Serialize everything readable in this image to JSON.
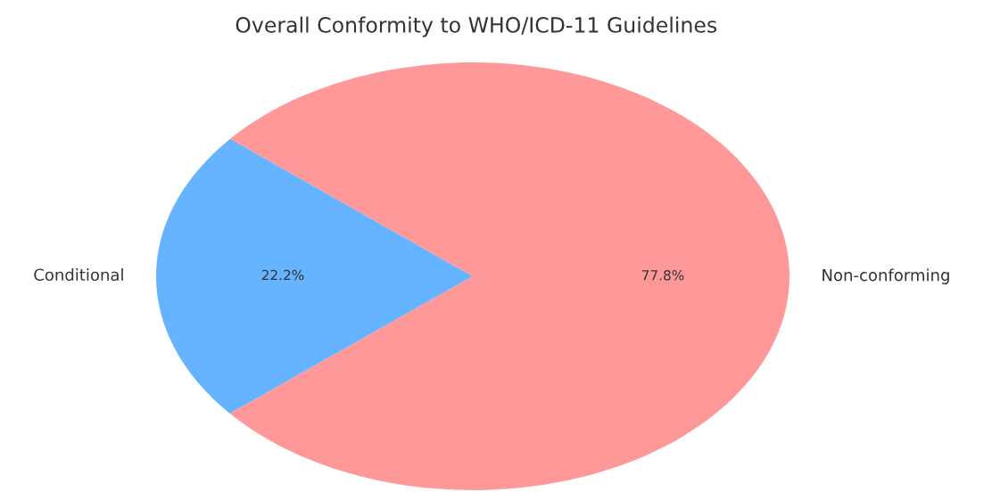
{
  "chart_data": {
    "type": "pie",
    "title": "Overall Conformity to WHO/ICD-11 Guidelines",
    "categories": [
      "Conditional",
      "Non-conforming"
    ],
    "values": [
      22.2,
      77.8
    ],
    "value_labels": [
      "22.2%",
      "77.8%"
    ],
    "colors": [
      "#66b3ff",
      "#ff9999"
    ]
  }
}
